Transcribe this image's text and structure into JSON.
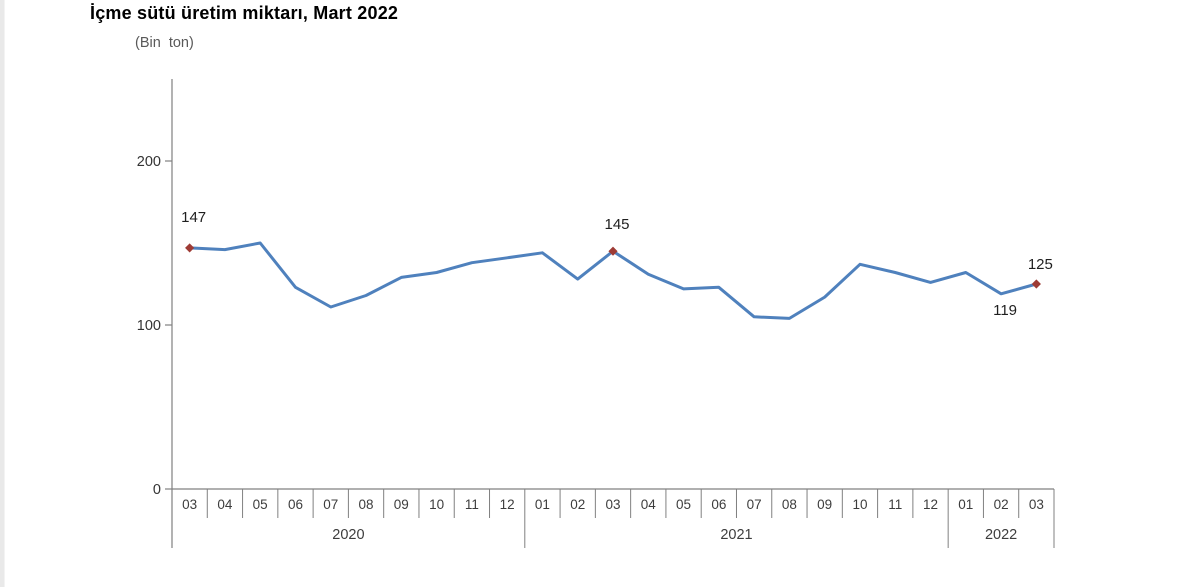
{
  "title": "İçme sütü üretim miktarı, Mart 2022",
  "subtitle": "(Bin  ton)",
  "chart_data": {
    "type": "line",
    "title": "İçme sütü üretim miktarı, Mart 2022",
    "unit_label": "(Bin ton)",
    "ylabel": "",
    "xlabel": "",
    "ylim": [
      0,
      250
    ],
    "yticks": [
      0,
      100,
      200
    ],
    "grid": false,
    "legend": "none",
    "years": [
      {
        "label": "2020",
        "months": [
          "03",
          "04",
          "05",
          "06",
          "07",
          "08",
          "09",
          "10",
          "11",
          "12"
        ]
      },
      {
        "label": "2021",
        "months": [
          "01",
          "02",
          "03",
          "04",
          "05",
          "06",
          "07",
          "08",
          "09",
          "10",
          "11",
          "12"
        ]
      },
      {
        "label": "2022",
        "months": [
          "01",
          "02",
          "03"
        ]
      }
    ],
    "values": [
      147,
      146,
      150,
      123,
      111,
      118,
      129,
      132,
      138,
      141,
      144,
      128,
      145,
      131,
      122,
      123,
      105,
      104,
      117,
      137,
      132,
      126,
      132,
      119,
      125
    ],
    "annotated_points": [
      {
        "index": 0,
        "label": "147",
        "position": "above",
        "dy": -26,
        "marker": true
      },
      {
        "index": 12,
        "label": "145",
        "position": "above",
        "dy": -22,
        "marker": true
      },
      {
        "index": 23,
        "label": "119",
        "position": "below",
        "dy": 21,
        "marker": false
      },
      {
        "index": 24,
        "label": "125",
        "position": "above",
        "dy": -15,
        "marker": true
      }
    ],
    "line_color": "#4F81BD",
    "marker_color": "#9E3B35",
    "axis_color": "#808080",
    "tick_label_color": "#333333",
    "month_label_color": "#3d3d3d",
    "data_label_color": "#1f1f1f"
  }
}
